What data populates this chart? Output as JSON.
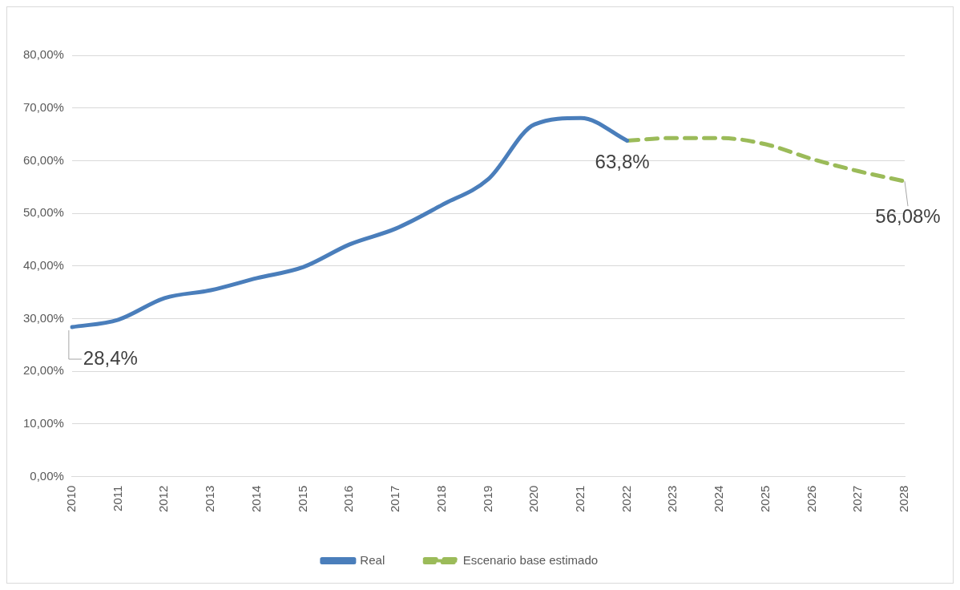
{
  "chart_data": {
    "type": "line",
    "categories": [
      "2010",
      "2011",
      "2012",
      "2013",
      "2014",
      "2015",
      "2016",
      "2017",
      "2018",
      "2019",
      "2020",
      "2021",
      "2022",
      "2023",
      "2024",
      "2025",
      "2026",
      "2027",
      "2028"
    ],
    "series": [
      {
        "name": "Real",
        "color": "#4a7ebb",
        "line_style": "solid",
        "values": [
          28.4,
          29.8,
          33.9,
          35.4,
          37.7,
          39.8,
          44.1,
          47.1,
          51.6,
          56.5,
          66.9,
          68.1,
          63.8,
          null,
          null,
          null,
          null,
          null,
          null
        ]
      },
      {
        "name": "Escenario base estimado",
        "color": "#9bbb59",
        "line_style": "dashed",
        "values": [
          null,
          null,
          null,
          null,
          null,
          null,
          null,
          null,
          null,
          null,
          null,
          null,
          63.8,
          64.3,
          64.3,
          63.1,
          60.3,
          58.0,
          56.08
        ]
      }
    ],
    "ylim": [
      0,
      80
    ],
    "yticks": [
      {
        "value": 0,
        "label": "0,00%"
      },
      {
        "value": 10,
        "label": "10,00%"
      },
      {
        "value": 20,
        "label": "20,00%"
      },
      {
        "value": 30,
        "label": "30,00%"
      },
      {
        "value": 40,
        "label": "40,00%"
      },
      {
        "value": 50,
        "label": "50,00%"
      },
      {
        "value": 60,
        "label": "60,00%"
      },
      {
        "value": 70,
        "label": "70,00%"
      },
      {
        "value": 80,
        "label": "80,00%"
      }
    ],
    "grid": "y",
    "legend": "bottom",
    "marker": "none",
    "annotations": [
      {
        "text": "28,4%",
        "x": "2010",
        "y": 28.4
      },
      {
        "text": "63,8%",
        "x": "2022",
        "y": 63.8
      },
      {
        "text": "56,08%",
        "x": "2028",
        "y": 56.08
      }
    ]
  }
}
